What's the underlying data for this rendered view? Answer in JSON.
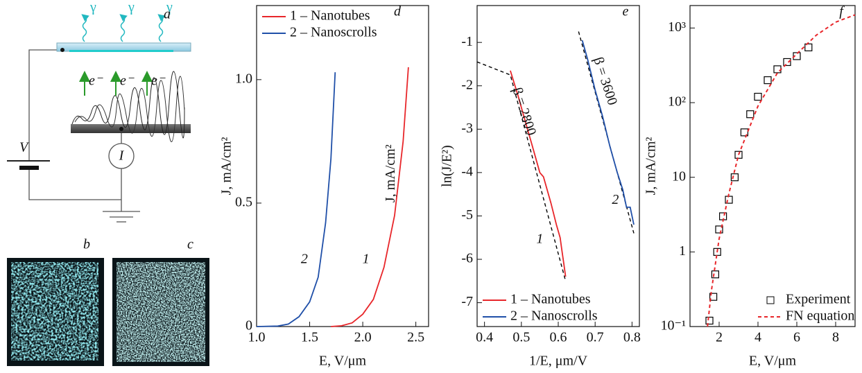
{
  "diagram": {
    "panel_a": {
      "label": "a",
      "gamma": [
        "γ",
        "γ",
        "γ"
      ],
      "electrons": [
        "e⁻",
        "e⁻",
        "e⁻"
      ],
      "voltage": "V",
      "current": "I"
    },
    "panel_b": {
      "label": "b"
    },
    "panel_c": {
      "label": "c"
    }
  },
  "chart_data": [
    {
      "type": "line",
      "panel_label": "d",
      "x_label": "E, V/μm",
      "y_label": "J, mA/cm²",
      "xlim": [
        1.0,
        2.62
      ],
      "ylim": [
        0,
        1.3
      ],
      "xticks": [
        {
          "value": 1,
          "label": "1.0"
        },
        1.5,
        {
          "value": 2,
          "label": "2.0"
        },
        2.5
      ],
      "yticks": [
        0,
        0.5,
        {
          "value": 1,
          "label": "1.0"
        }
      ],
      "legend": "upper left",
      "series": [
        {
          "name": "1 – Nanotubes",
          "color": "#e8262a",
          "x": [
            1.7,
            1.8,
            1.9,
            2.0,
            2.1,
            2.2,
            2.3,
            2.38,
            2.43
          ],
          "values": [
            0,
            0.003,
            0.015,
            0.05,
            0.11,
            0.24,
            0.45,
            0.75,
            1.05
          ]
        },
        {
          "name": "2 – Nanoscrolls",
          "color": "#1f4fa8",
          "x": [
            1.0,
            1.2,
            1.3,
            1.4,
            1.5,
            1.58,
            1.65,
            1.7,
            1.74
          ],
          "values": [
            0,
            0.002,
            0.01,
            0.04,
            0.1,
            0.2,
            0.42,
            0.68,
            1.03
          ]
        }
      ],
      "annotations": [
        "1",
        "2",
        "J, mA/cm²"
      ]
    },
    {
      "type": "line",
      "panel_label": "e",
      "x_label": "1/E, μm/V",
      "y_label": "ln(J/E²)",
      "xlim": [
        0.38,
        0.82
      ],
      "ylim": [
        -7.55,
        -0.15
      ],
      "xticks": [
        0.4,
        0.5,
        0.6,
        0.7,
        0.8
      ],
      "yticks": [
        -7,
        -6,
        -5,
        -4,
        -3,
        -2,
        -1
      ],
      "legend": "lower left",
      "series": [
        {
          "name": "1 – Nanotubes",
          "color": "#e8262a",
          "x": [
            0.47,
            0.49,
            0.51,
            0.53,
            0.55,
            0.56,
            0.58,
            0.595,
            0.605,
            0.61,
            0.615,
            0.62
          ],
          "values": [
            -1.65,
            -2.2,
            -2.8,
            -3.4,
            -4.0,
            -4.1,
            -4.7,
            -5.2,
            -5.5,
            -5.8,
            -6.1,
            -6.4
          ]
        },
        {
          "name": "2 – Nanoscrolls",
          "color": "#1f4fa8",
          "x": [
            0.665,
            0.68,
            0.7,
            0.72,
            0.74,
            0.76,
            0.775,
            0.785,
            0.795,
            0.805
          ],
          "values": [
            -0.95,
            -1.4,
            -2.1,
            -2.7,
            -3.4,
            -4.0,
            -4.4,
            -4.8,
            -4.8,
            -5.2
          ]
        }
      ],
      "fits": [
        {
          "color": "#000000",
          "x": [
            0.38,
            0.47,
            0.62
          ],
          "values": [
            -1.45,
            -1.75,
            -6.5
          ]
        },
        {
          "color": "#000000",
          "x": [
            0.655,
            0.805
          ],
          "values": [
            -0.75,
            -5.4
          ]
        }
      ],
      "annotations": [
        "β = 2800",
        "β = 3600",
        "1",
        "2"
      ]
    },
    {
      "type": "scatter",
      "panel_label": "f",
      "x_label": "E, V/μm",
      "y_label": "J, mA/cm²",
      "xlim": [
        0.5,
        9
      ],
      "ylim": [
        0.1,
        2000
      ],
      "log_y": true,
      "xticks": [
        2,
        4,
        6,
        8
      ],
      "yticks": [
        {
          "value": 0.1,
          "label": "10⁻¹"
        },
        1,
        10,
        {
          "value": 100,
          "label": "10²"
        },
        {
          "value": 1000,
          "label": "10³"
        }
      ],
      "legend": "lower right",
      "series": [
        {
          "name": "Experiment",
          "color": "#000000",
          "marker": "square",
          "x": [
            1.5,
            1.7,
            1.8,
            1.9,
            2.0,
            2.2,
            2.5,
            2.8,
            3.0,
            3.3,
            3.6,
            4.0,
            4.5,
            5.0,
            5.5,
            6.0,
            6.6
          ],
          "values": [
            0.12,
            0.25,
            0.5,
            1,
            2,
            3,
            5,
            10,
            20,
            40,
            70,
            120,
            200,
            280,
            350,
            420,
            550
          ]
        },
        {
          "name": "FN equation",
          "color": "#e8262a",
          "line_style": "dashed",
          "x": [
            1.4,
            1.6,
            2,
            2.5,
            3,
            4,
            5,
            6,
            7,
            8,
            9
          ],
          "values": [
            0.1,
            0.3,
            1.5,
            6,
            20,
            90,
            250,
            450,
            800,
            1200,
            1500
          ]
        }
      ],
      "annotations": []
    }
  ]
}
